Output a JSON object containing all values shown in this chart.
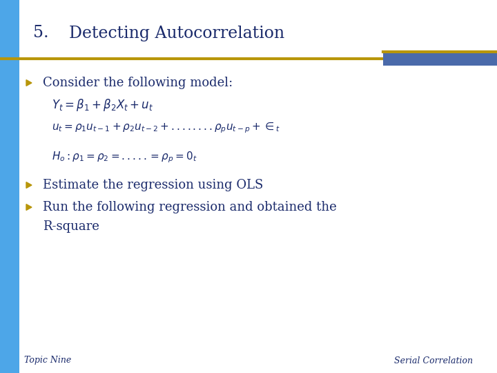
{
  "title_number": "5.",
  "title_text": "Detecting Autocorrelation",
  "bg_color": "#ffffff",
  "left_bar_color": "#4da6e8",
  "gold_line_color": "#b8960a",
  "blue_rect_color": "#4a6aaa",
  "title_color": "#1a2a6b",
  "bullet_color": "#b8960a",
  "bullet1": "Consider the following model:",
  "eq1": "$Y_t = \\beta_1 + \\beta_2 X_t + u_t$",
  "eq2": "$u_t = \\rho_1 u_{t-1} + \\rho_2 u_{t-2} + ........\\rho_p u_{t-p} + \\in_t$",
  "eq3": "$H_o : \\rho_1 = \\rho_2 = ..... = \\rho_p = 0_t$",
  "bullet2": "Estimate the regression using OLS",
  "bullet3_line1": "Run the following regression and obtained the",
  "bullet3_line2": "R-square",
  "footer_left": "Topic Nine",
  "footer_right": "Serial Correlation"
}
